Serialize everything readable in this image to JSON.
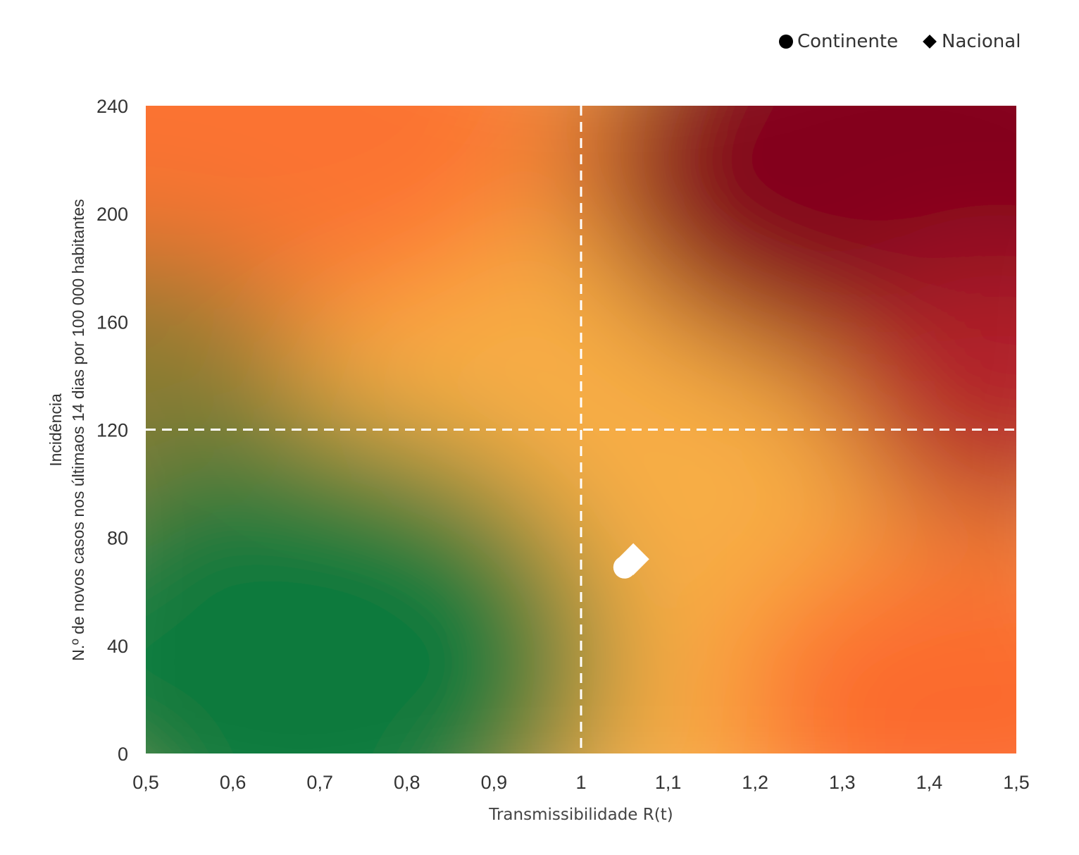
{
  "chart_data": {
    "type": "scatter",
    "xlabel": "Transmissibilidade R(t)",
    "ylabel": [
      "Incidência",
      "N.º de novos casos nos últimaos 14 dias por 100 000 habitantes"
    ],
    "xlim": [
      0.5,
      1.5
    ],
    "ylim": [
      0,
      240
    ],
    "x_ticks": [
      0.5,
      0.6,
      0.7,
      0.8,
      0.9,
      1,
      1.1,
      1.2,
      1.3,
      1.4,
      1.5
    ],
    "x_tick_labels": [
      "0,5",
      "0,6",
      "0,7",
      "0,8",
      "0,9",
      "1",
      "1,1",
      "1,2",
      "1,3",
      "1,4",
      "1,5"
    ],
    "y_ticks": [
      0,
      40,
      80,
      120,
      160,
      200,
      240
    ],
    "y_tick_labels": [
      "0",
      "40",
      "80",
      "120",
      "160",
      "200",
      "240"
    ],
    "thresholds": {
      "x": 1,
      "y": 120
    },
    "legend_position": "top-right",
    "series": [
      {
        "name": "Continente",
        "marker": "circle",
        "points": [
          {
            "x": 1.05,
            "y": 69
          }
        ]
      },
      {
        "name": "Nacional",
        "marker": "diamond",
        "points": [
          {
            "x": 1.06,
            "y": 72
          }
        ]
      }
    ],
    "background_colors": {
      "green": "#0f7a3e",
      "yellow": "#f8ae45",
      "orange": "#fb6b2e",
      "red": "#84001f"
    },
    "marker_color": "#ffffff",
    "threshold_color": "#ffffff"
  }
}
